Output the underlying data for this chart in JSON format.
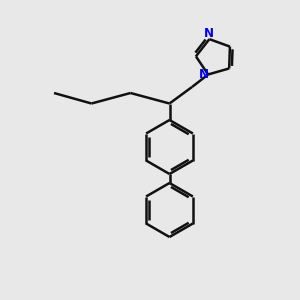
{
  "background_color": "#e8e8e8",
  "bond_color": "#111111",
  "nitrogen_color": "#0000ee",
  "bond_width": 1.8,
  "figsize": [
    3.0,
    3.0
  ],
  "dpi": 100,
  "xlim": [
    0,
    10
  ],
  "ylim": [
    0,
    10
  ]
}
